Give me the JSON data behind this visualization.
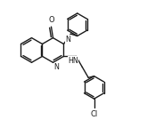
{
  "background_color": "#ffffff",
  "bond_color": "#1a1a1a",
  "lw": 1.0,
  "figsize": [
    1.65,
    1.35
  ],
  "dpi": 100,
  "xlim": [
    0,
    165
  ],
  "ylim": [
    0,
    135
  ]
}
